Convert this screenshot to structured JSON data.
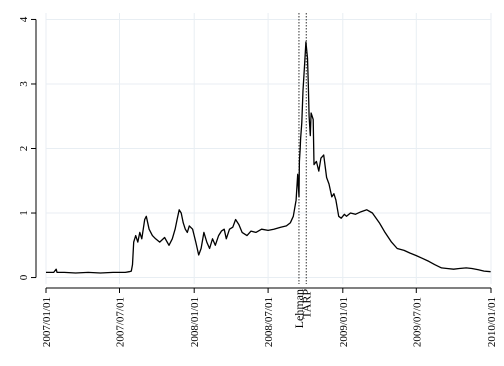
{
  "chart_data": {
    "type": "line",
    "title": "",
    "xlabel": "",
    "ylabel": "",
    "xlim": [
      "2007-01-01",
      "2010-01-01"
    ],
    "ylim": [
      -0.1,
      4.1
    ],
    "grid": true,
    "y_ticks": [
      0,
      1,
      2,
      3,
      4
    ],
    "y_tick_labels": [
      "0",
      "1",
      "2",
      "3",
      "4"
    ],
    "x_ticks": [
      "2007-01-01",
      "2007-07-01",
      "2008-01-01",
      "2008-07-01",
      "2009-01-01",
      "2009-07-01",
      "2010-01-01"
    ],
    "x_tick_labels": [
      "2007/01/01",
      "2007/07/01",
      "2008/01/01",
      "2008/07/01",
      "2009/01/01",
      "2009/07/01",
      "2010/01/01"
    ],
    "events": [
      {
        "label": "Lehman",
        "date": "2008-09-15"
      },
      {
        "label": "TARP",
        "date": "2008-10-03"
      }
    ],
    "series": [
      {
        "color": "#000000",
        "x": [
          "2007-01-01",
          "2007-01-20",
          "2007-01-26",
          "2007-01-28",
          "2007-02-15",
          "2007-03-15",
          "2007-04-15",
          "2007-05-15",
          "2007-06-15",
          "2007-07-15",
          "2007-07-25",
          "2007-07-30",
          "2007-08-02",
          "2007-08-05",
          "2007-08-10",
          "2007-08-15",
          "2007-08-20",
          "2007-08-25",
          "2007-09-01",
          "2007-09-05",
          "2007-09-12",
          "2007-09-20",
          "2007-09-28",
          "2007-10-08",
          "2007-10-20",
          "2007-10-31",
          "2007-11-08",
          "2007-11-15",
          "2007-11-20",
          "2007-11-25",
          "2007-11-30",
          "2007-12-05",
          "2007-12-10",
          "2007-12-15",
          "2007-12-20",
          "2007-12-28",
          "2008-01-05",
          "2008-01-12",
          "2008-01-18",
          "2008-01-25",
          "2008-02-01",
          "2008-02-08",
          "2008-02-15",
          "2008-02-22",
          "2008-03-01",
          "2008-03-08",
          "2008-03-15",
          "2008-03-20",
          "2008-03-28",
          "2008-04-05",
          "2008-04-12",
          "2008-04-20",
          "2008-04-28",
          "2008-05-10",
          "2008-05-20",
          "2008-06-01",
          "2008-06-15",
          "2008-07-01",
          "2008-07-15",
          "2008-08-01",
          "2008-08-15",
          "2008-08-25",
          "2008-09-01",
          "2008-09-08",
          "2008-09-12",
          "2008-09-15",
          "2008-09-16",
          "2008-09-18",
          "2008-09-19",
          "2008-09-22",
          "2008-09-25",
          "2008-09-29",
          "2008-10-02",
          "2008-10-06",
          "2008-10-08",
          "2008-10-10",
          "2008-10-13",
          "2008-10-15",
          "2008-10-20",
          "2008-10-22",
          "2008-10-28",
          "2008-11-03",
          "2008-11-08",
          "2008-11-15",
          "2008-11-22",
          "2008-11-28",
          "2008-12-05",
          "2008-12-10",
          "2008-12-15",
          "2008-12-22",
          "2008-12-28",
          "2009-01-05",
          "2009-01-10",
          "2009-01-20",
          "2009-02-01",
          "2009-02-15",
          "2009-03-01",
          "2009-03-15",
          "2009-04-01",
          "2009-04-15",
          "2009-05-01",
          "2009-05-15",
          "2009-06-01",
          "2009-06-15",
          "2009-07-01",
          "2009-07-15",
          "2009-08-01",
          "2009-08-15",
          "2009-09-01",
          "2009-09-15",
          "2009-10-01",
          "2009-10-15",
          "2009-11-01",
          "2009-11-15",
          "2009-12-01",
          "2009-12-15",
          "2009-12-31"
        ],
        "y": [
          0.08,
          0.08,
          0.13,
          0.08,
          0.08,
          0.07,
          0.08,
          0.07,
          0.08,
          0.08,
          0.09,
          0.1,
          0.2,
          0.55,
          0.65,
          0.55,
          0.7,
          0.6,
          0.9,
          0.95,
          0.75,
          0.65,
          0.6,
          0.55,
          0.62,
          0.5,
          0.6,
          0.75,
          0.9,
          1.05,
          1.0,
          0.85,
          0.75,
          0.7,
          0.8,
          0.75,
          0.55,
          0.35,
          0.45,
          0.7,
          0.55,
          0.45,
          0.6,
          0.5,
          0.65,
          0.72,
          0.75,
          0.6,
          0.75,
          0.78,
          0.9,
          0.82,
          0.7,
          0.65,
          0.72,
          0.7,
          0.75,
          0.73,
          0.75,
          0.78,
          0.8,
          0.85,
          0.95,
          1.2,
          1.6,
          1.25,
          1.8,
          2.0,
          2.15,
          2.4,
          2.9,
          3.3,
          3.65,
          3.4,
          3.0,
          2.5,
          2.2,
          2.55,
          2.45,
          1.75,
          1.8,
          1.65,
          1.85,
          1.9,
          1.55,
          1.45,
          1.25,
          1.3,
          1.2,
          0.95,
          0.92,
          0.98,
          0.95,
          1.0,
          0.98,
          1.02,
          1.05,
          1.0,
          0.85,
          0.7,
          0.55,
          0.45,
          0.42,
          0.38,
          0.34,
          0.3,
          0.25,
          0.2,
          0.15,
          0.14,
          0.13,
          0.14,
          0.15,
          0.14,
          0.12,
          0.1,
          0.09
        ]
      }
    ]
  }
}
